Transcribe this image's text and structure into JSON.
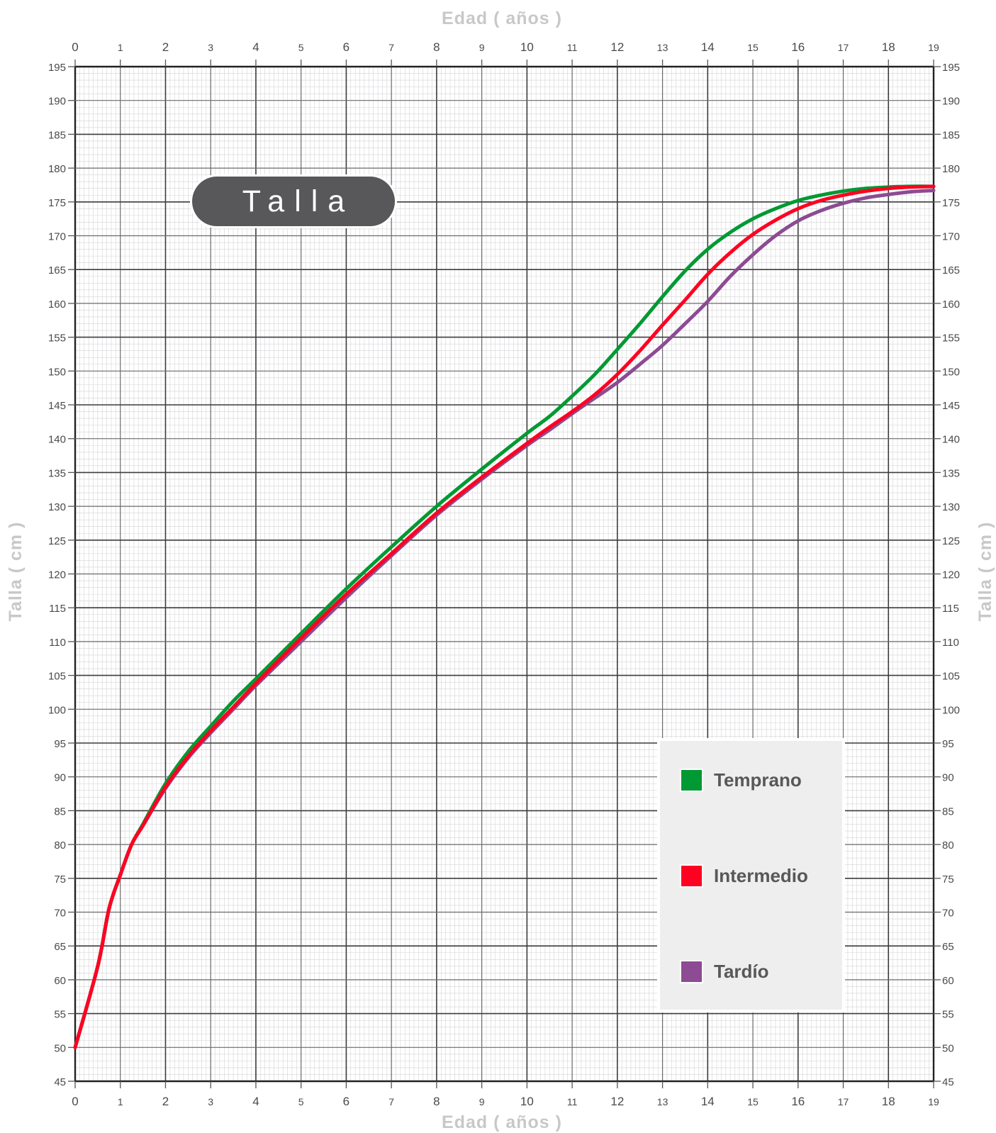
{
  "chart_data": {
    "type": "line",
    "title": "Talla",
    "xlabel": "Edad ( años )",
    "ylabel": "Talla ( cm )",
    "xlim": [
      0,
      19
    ],
    "ylim": [
      45,
      195
    ],
    "x_ticks": [
      0,
      1,
      2,
      3,
      4,
      5,
      6,
      7,
      8,
      9,
      10,
      11,
      12,
      13,
      14,
      15,
      16,
      17,
      18,
      19
    ],
    "y_ticks": [
      45,
      50,
      55,
      60,
      65,
      70,
      75,
      80,
      85,
      90,
      95,
      100,
      105,
      110,
      115,
      120,
      125,
      130,
      135,
      140,
      145,
      150,
      155,
      160,
      165,
      170,
      175,
      180,
      185,
      190,
      195
    ],
    "grid": true,
    "legend_position": "lower-right",
    "series": [
      {
        "name": "Temprano",
        "color": "#009933",
        "x": [
          0,
          0.5,
          0.75,
          1,
          1.25,
          1.5,
          2,
          2.5,
          3,
          3.5,
          4,
          5,
          6,
          7,
          8,
          9,
          10,
          10.5,
          11,
          11.5,
          12,
          12.5,
          13,
          13.5,
          14,
          14.5,
          15,
          15.5,
          16,
          16.5,
          17,
          17.5,
          18,
          18.5,
          19
        ],
        "y": [
          50,
          62,
          70.5,
          75.5,
          80,
          83,
          89,
          93.7,
          97.5,
          101.2,
          104.5,
          111.2,
          117.8,
          124,
          130,
          135.5,
          140.8,
          143.3,
          146.3,
          149.5,
          153.2,
          157,
          161,
          164.8,
          168,
          170.5,
          172.5,
          174,
          175.2,
          176,
          176.6,
          177,
          177.2,
          177.3,
          177.3
        ]
      },
      {
        "name": "Intermedio",
        "color": "#ff0022",
        "x": [
          0,
          0.5,
          0.75,
          1,
          1.25,
          1.5,
          2,
          2.5,
          3,
          3.5,
          4,
          5,
          6,
          7,
          8,
          9,
          10,
          10.5,
          11,
          11.5,
          12,
          12.5,
          13,
          13.5,
          14,
          14.5,
          15,
          15.5,
          16,
          16.5,
          17,
          17.5,
          18,
          18.5,
          19
        ],
        "y": [
          50,
          62,
          70.5,
          75.5,
          80,
          82.8,
          88.5,
          93,
          96.8,
          100.3,
          103.8,
          110.5,
          117,
          123,
          129,
          134.3,
          139.3,
          141.7,
          144,
          146.5,
          149.5,
          153,
          156.8,
          160.5,
          164.3,
          167.5,
          170.2,
          172.3,
          174,
          175.2,
          176,
          176.6,
          177,
          177.2,
          177.3
        ]
      },
      {
        "name": "Tardío",
        "color": "#8c4b92",
        "x": [
          0,
          0.5,
          0.75,
          1,
          1.25,
          1.5,
          2,
          2.5,
          3,
          3.5,
          4,
          5,
          6,
          7,
          8,
          9,
          10,
          10.5,
          11,
          11.5,
          12,
          12.5,
          13,
          13.5,
          14,
          14.5,
          15,
          15.5,
          16,
          16.5,
          17,
          17.5,
          18,
          18.5,
          19
        ],
        "y": [
          50,
          62,
          70.5,
          75.5,
          80,
          82.8,
          88.3,
          92.8,
          96.5,
          100,
          103.5,
          110,
          116.5,
          122.7,
          128.7,
          134,
          139,
          141.3,
          143.7,
          146,
          148.3,
          151,
          153.8,
          157,
          160.3,
          164,
          167.2,
          170,
          172.2,
          173.7,
          174.8,
          175.6,
          176.1,
          176.5,
          176.7
        ]
      }
    ]
  }
}
